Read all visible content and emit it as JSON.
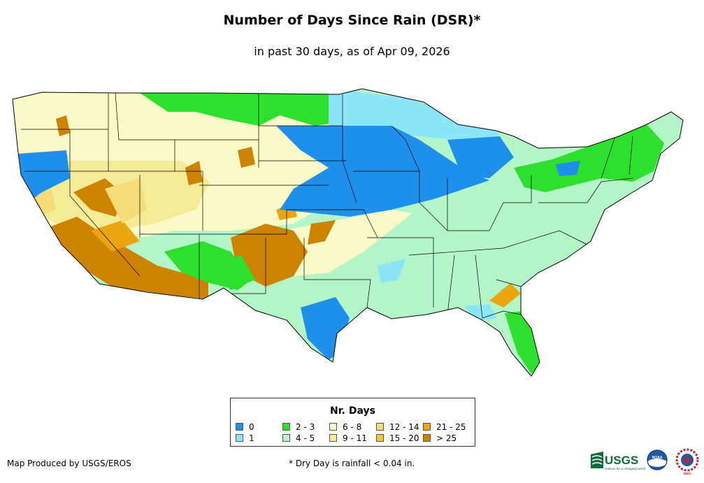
{
  "title": "Number of Days Since Rain (DSR)*",
  "subtitle": "in past 30 days, as of Apr 09, 2026",
  "legend": {
    "title": "Nr. Days",
    "items": [
      {
        "label": "0",
        "color": "#1e90ea"
      },
      {
        "label": "1",
        "color": "#8ce6fa"
      },
      {
        "label": "2 - 3",
        "color": "#2ee02e"
      },
      {
        "label": "4 - 5",
        "color": "#b4f5c8"
      },
      {
        "label": "6 - 8",
        "color": "#fafac8"
      },
      {
        "label": "9 - 11",
        "color": "#f5eb96"
      },
      {
        "label": "12 - 14",
        "color": "#f5dc78"
      },
      {
        "label": "15 - 20",
        "color": "#f0c832"
      },
      {
        "label": "21 - 25",
        "color": "#eba50f"
      },
      {
        "label": "> 25",
        "color": "#cd8200"
      }
    ]
  },
  "credit": "Map Produced by USGS/EROS",
  "footnote": "* Dry Day is rainfall < 0.04 in.",
  "logos": {
    "usgs_text": "USGS",
    "usgs_tagline": "science for a changing world",
    "noaa_text": "NOAA",
    "nws_text": "NWS"
  }
}
